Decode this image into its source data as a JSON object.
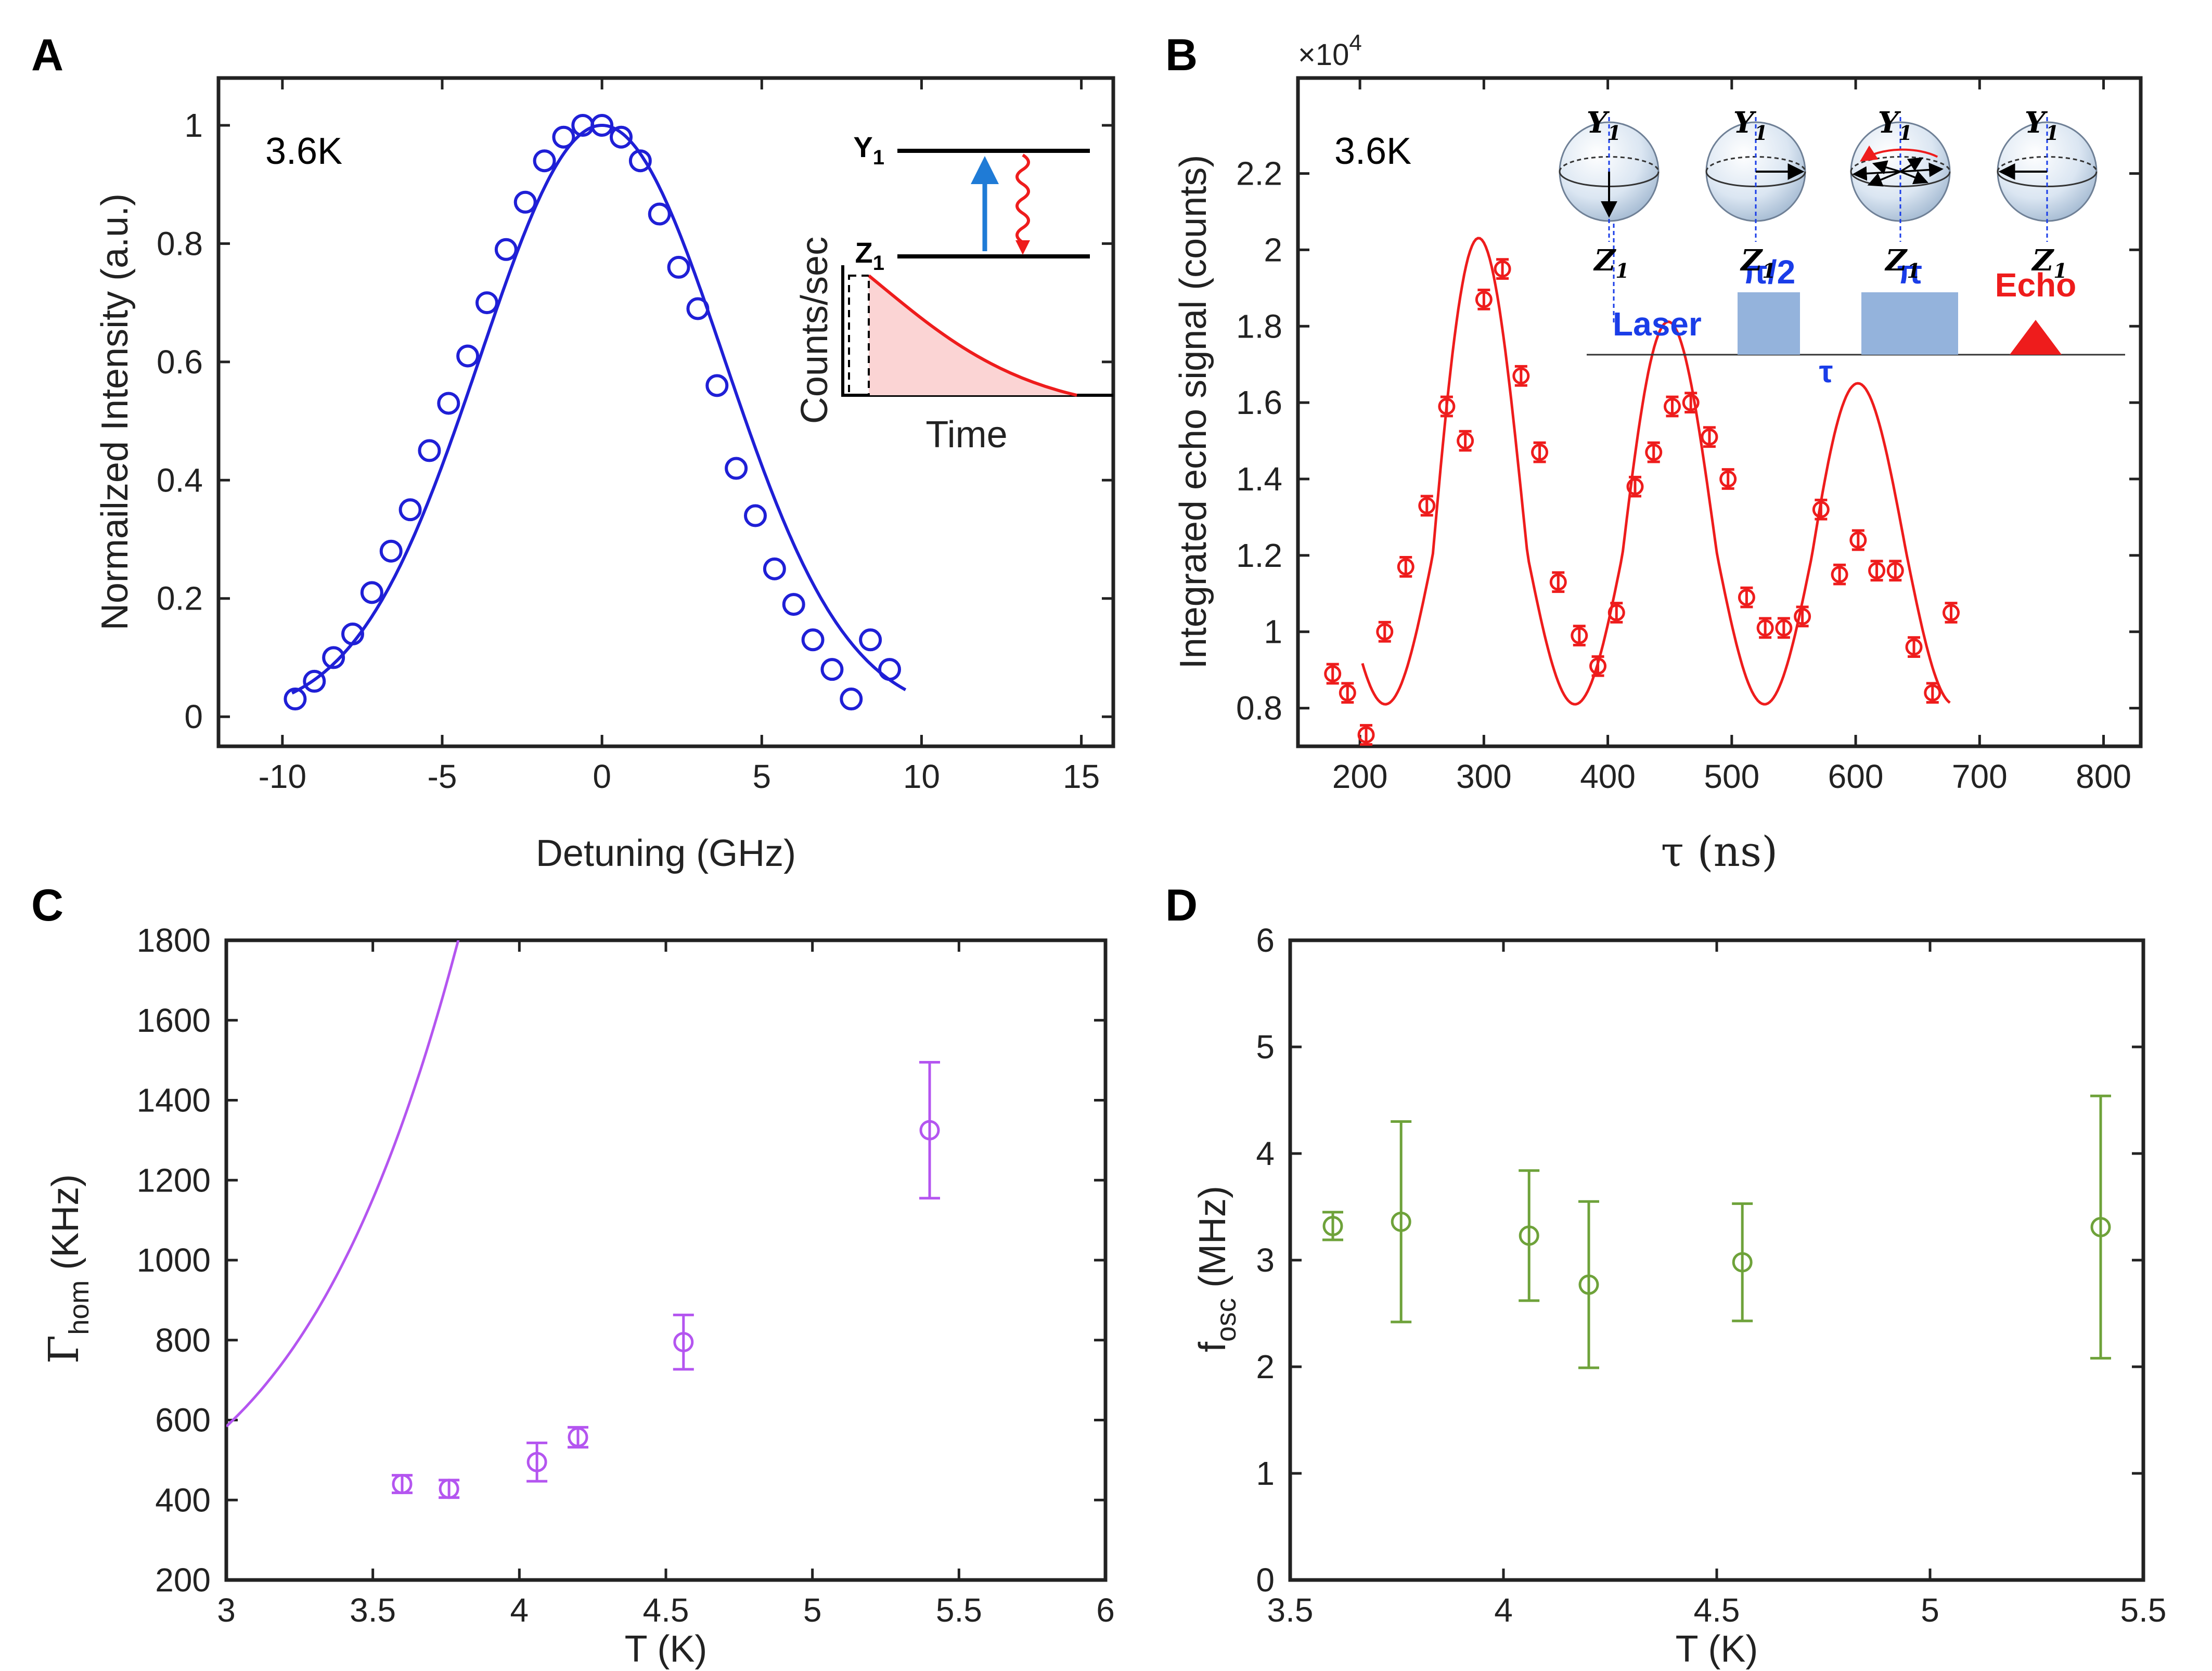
{
  "colors": {
    "blue": "#1f1fd6",
    "red": "#ee1c1c",
    "purple": "#b455f0",
    "green": "#6ea23a",
    "pulse": "#94b3dc",
    "label_blue": "#1a3de8"
  },
  "panels": {
    "A": {
      "letter": "A",
      "annotation": "3.6K"
    },
    "B": {
      "letter": "B",
      "annotation": "3.6K",
      "exponent_times": "×10",
      "exponent_power": "4"
    },
    "C": {
      "letter": "C"
    },
    "D": {
      "letter": "D"
    }
  },
  "insetA": {
    "upper_level": "Y",
    "upper_sub": "1",
    "lower_level": "Z",
    "lower_sub": "1",
    "ylabel": "Counts/sec",
    "xlabel": "Time"
  },
  "insetB": {
    "spheres": [
      {
        "top": "Y",
        "top_sub": "1",
        "bottom": "Z",
        "bottom_sub": "1"
      },
      {
        "top": "Y",
        "top_sub": "1",
        "bottom": "Z",
        "bottom_sub": "1"
      },
      {
        "top": "Y",
        "top_sub": "1",
        "bottom": "Z",
        "bottom_sub": "1"
      },
      {
        "top": "Y",
        "top_sub": "1",
        "bottom": "Z",
        "bottom_sub": "1"
      }
    ],
    "laser": "Laser",
    "pulse_half": "π/2",
    "pulse_pi": "π",
    "echo": "Echo",
    "tau": "τ"
  },
  "chart_data": [
    {
      "id": "A",
      "type": "scatter",
      "title": "",
      "xlabel": "Detuning (GHz)",
      "ylabel": "Normailzed Intensity (a.u.)",
      "xlim": [
        -12,
        16
      ],
      "ylim": [
        -0.05,
        1.08
      ],
      "xticks": [
        -10,
        -5,
        0,
        5,
        10,
        15
      ],
      "yticks": [
        0,
        0.2,
        0.4,
        0.6,
        0.8,
        1
      ],
      "xtick_labels": [
        "-10",
        "-5",
        "0",
        "5",
        "10",
        "15"
      ],
      "ytick_labels": [
        "0",
        "0.2",
        "0.4",
        "0.6",
        "0.8",
        "1"
      ],
      "series": [
        {
          "name": "data",
          "kind": "points",
          "x": [
            -9.6,
            -9.0,
            -8.4,
            -7.8,
            -7.2,
            -6.6,
            -6.0,
            -5.4,
            -4.8,
            -4.2,
            -3.6,
            -3.0,
            -2.4,
            -1.8,
            -1.2,
            -0.6,
            0.0,
            0.6,
            1.2,
            1.8,
            2.4,
            3.0,
            3.6,
            4.2,
            4.8,
            5.4,
            6.0,
            6.6,
            7.2,
            7.8,
            8.4,
            9.0
          ],
          "y": [
            0.03,
            0.06,
            0.1,
            0.14,
            0.21,
            0.28,
            0.35,
            0.45,
            0.53,
            0.61,
            0.7,
            0.79,
            0.87,
            0.94,
            0.98,
            1.0,
            1.0,
            0.98,
            0.94,
            0.85,
            0.76,
            0.69,
            0.56,
            0.42,
            0.34,
            0.25,
            0.19,
            0.13,
            0.08,
            0.03,
            0.13,
            0.08
          ]
        },
        {
          "name": "fit",
          "kind": "curve",
          "model": "gaussian",
          "amplitude": 1.0,
          "center": 0.0,
          "fwhm": 9.0,
          "x_range": [
            -9.7,
            9.5
          ]
        }
      ]
    },
    {
      "id": "B",
      "type": "scatter",
      "title": "",
      "xlabel": "τ (ns)",
      "ylabel": "Integrated echo signal (counts)",
      "xlim": [
        150,
        830
      ],
      "ylim": [
        0.7,
        2.45
      ],
      "xticks": [
        200,
        300,
        400,
        500,
        600,
        700,
        800
      ],
      "yticks": [
        0.8,
        1,
        1.2,
        1.4,
        1.6,
        1.8,
        2,
        2.2
      ],
      "xtick_labels": [
        "200",
        "300",
        "400",
        "500",
        "600",
        "700",
        "800"
      ],
      "ytick_labels": [
        "0.8",
        "1",
        "1.2",
        "1.4",
        "1.6",
        "1.8",
        "2",
        "2.2"
      ],
      "series": [
        {
          "name": "data",
          "kind": "points",
          "errorbar": 0.025,
          "x": [
            178,
            190,
            205,
            220,
            237,
            254,
            270,
            285,
            300,
            315,
            330,
            345,
            360,
            377,
            392,
            407,
            422,
            437,
            452,
            467,
            482,
            497,
            512,
            527,
            542,
            557,
            572,
            587,
            602,
            617,
            632,
            647,
            662,
            677
          ],
          "y": [
            0.89,
            0.84,
            0.73,
            1.0,
            1.17,
            1.33,
            1.59,
            1.5,
            1.87,
            1.95,
            1.67,
            1.47,
            1.13,
            0.99,
            0.91,
            1.05,
            1.38,
            1.47,
            1.59,
            1.6,
            1.51,
            1.4,
            1.09,
            1.01,
            1.01,
            1.04,
            1.32,
            1.15,
            1.24,
            1.16,
            1.16,
            0.96,
            0.84,
            1.05
          ]
        },
        {
          "name": "fit",
          "kind": "curve",
          "model": "damped_cosine",
          "offset": 1.2,
          "amplitude": 0.85,
          "period": 153,
          "phase_center": 297,
          "decay_tau": 500,
          "x_range": [
            202,
            676
          ]
        }
      ]
    },
    {
      "id": "C",
      "type": "scatter",
      "title": "",
      "xlabel": "T (K)",
      "ylabel": "Γ",
      "ylabel_sub": "hom",
      "ylabel_unit": " (KHz)",
      "xlim": [
        3,
        6
      ],
      "ylim": [
        200,
        1800
      ],
      "xticks": [
        3,
        3.5,
        4,
        4.5,
        5,
        5.5,
        6
      ],
      "yticks": [
        200,
        400,
        600,
        800,
        1000,
        1200,
        1400,
        1600,
        1800
      ],
      "xtick_labels": [
        "3",
        "3.5",
        "4",
        "4.5",
        "5",
        "5.5",
        "6"
      ],
      "ytick_labels": [
        "200",
        "400",
        "600",
        "800",
        "1000",
        "1200",
        "1400",
        "1600",
        "1800"
      ],
      "series": [
        {
          "name": "data",
          "kind": "points",
          "x": [
            3.6,
            3.76,
            4.06,
            4.2,
            4.56,
            5.4
          ],
          "y": [
            440,
            428,
            495,
            557,
            795,
            1325
          ],
          "err": [
            22,
            22,
            48,
            25,
            68,
            170
          ]
        },
        {
          "name": "fit",
          "kind": "curve",
          "model": "power7",
          "base": 291,
          "coef": 0.134,
          "exponent": 7,
          "x_range": [
            3.0,
            5.88
          ]
        }
      ]
    },
    {
      "id": "D",
      "type": "scatter",
      "title": "",
      "xlabel": "T (K)",
      "ylabel": "f",
      "ylabel_sub": "osc",
      "ylabel_unit": " (MHz)",
      "xlim": [
        3.5,
        5.5
      ],
      "ylim": [
        0,
        6
      ],
      "xticks": [
        3.5,
        4,
        4.5,
        5,
        5.5
      ],
      "yticks": [
        0,
        1,
        2,
        3,
        4,
        5,
        6
      ],
      "xtick_labels": [
        "3.5",
        "4",
        "4.5",
        "5",
        "5.5"
      ],
      "ytick_labels": [
        "0",
        "1",
        "2",
        "3",
        "4",
        "5",
        "6"
      ],
      "series": [
        {
          "name": "data",
          "kind": "points",
          "x": [
            3.6,
            3.76,
            4.06,
            4.2,
            4.56,
            5.4
          ],
          "y": [
            3.32,
            3.36,
            3.23,
            2.77,
            2.98,
            3.31
          ],
          "err": [
            0.13,
            0.94,
            0.61,
            0.78,
            0.55,
            1.23
          ]
        }
      ]
    }
  ]
}
